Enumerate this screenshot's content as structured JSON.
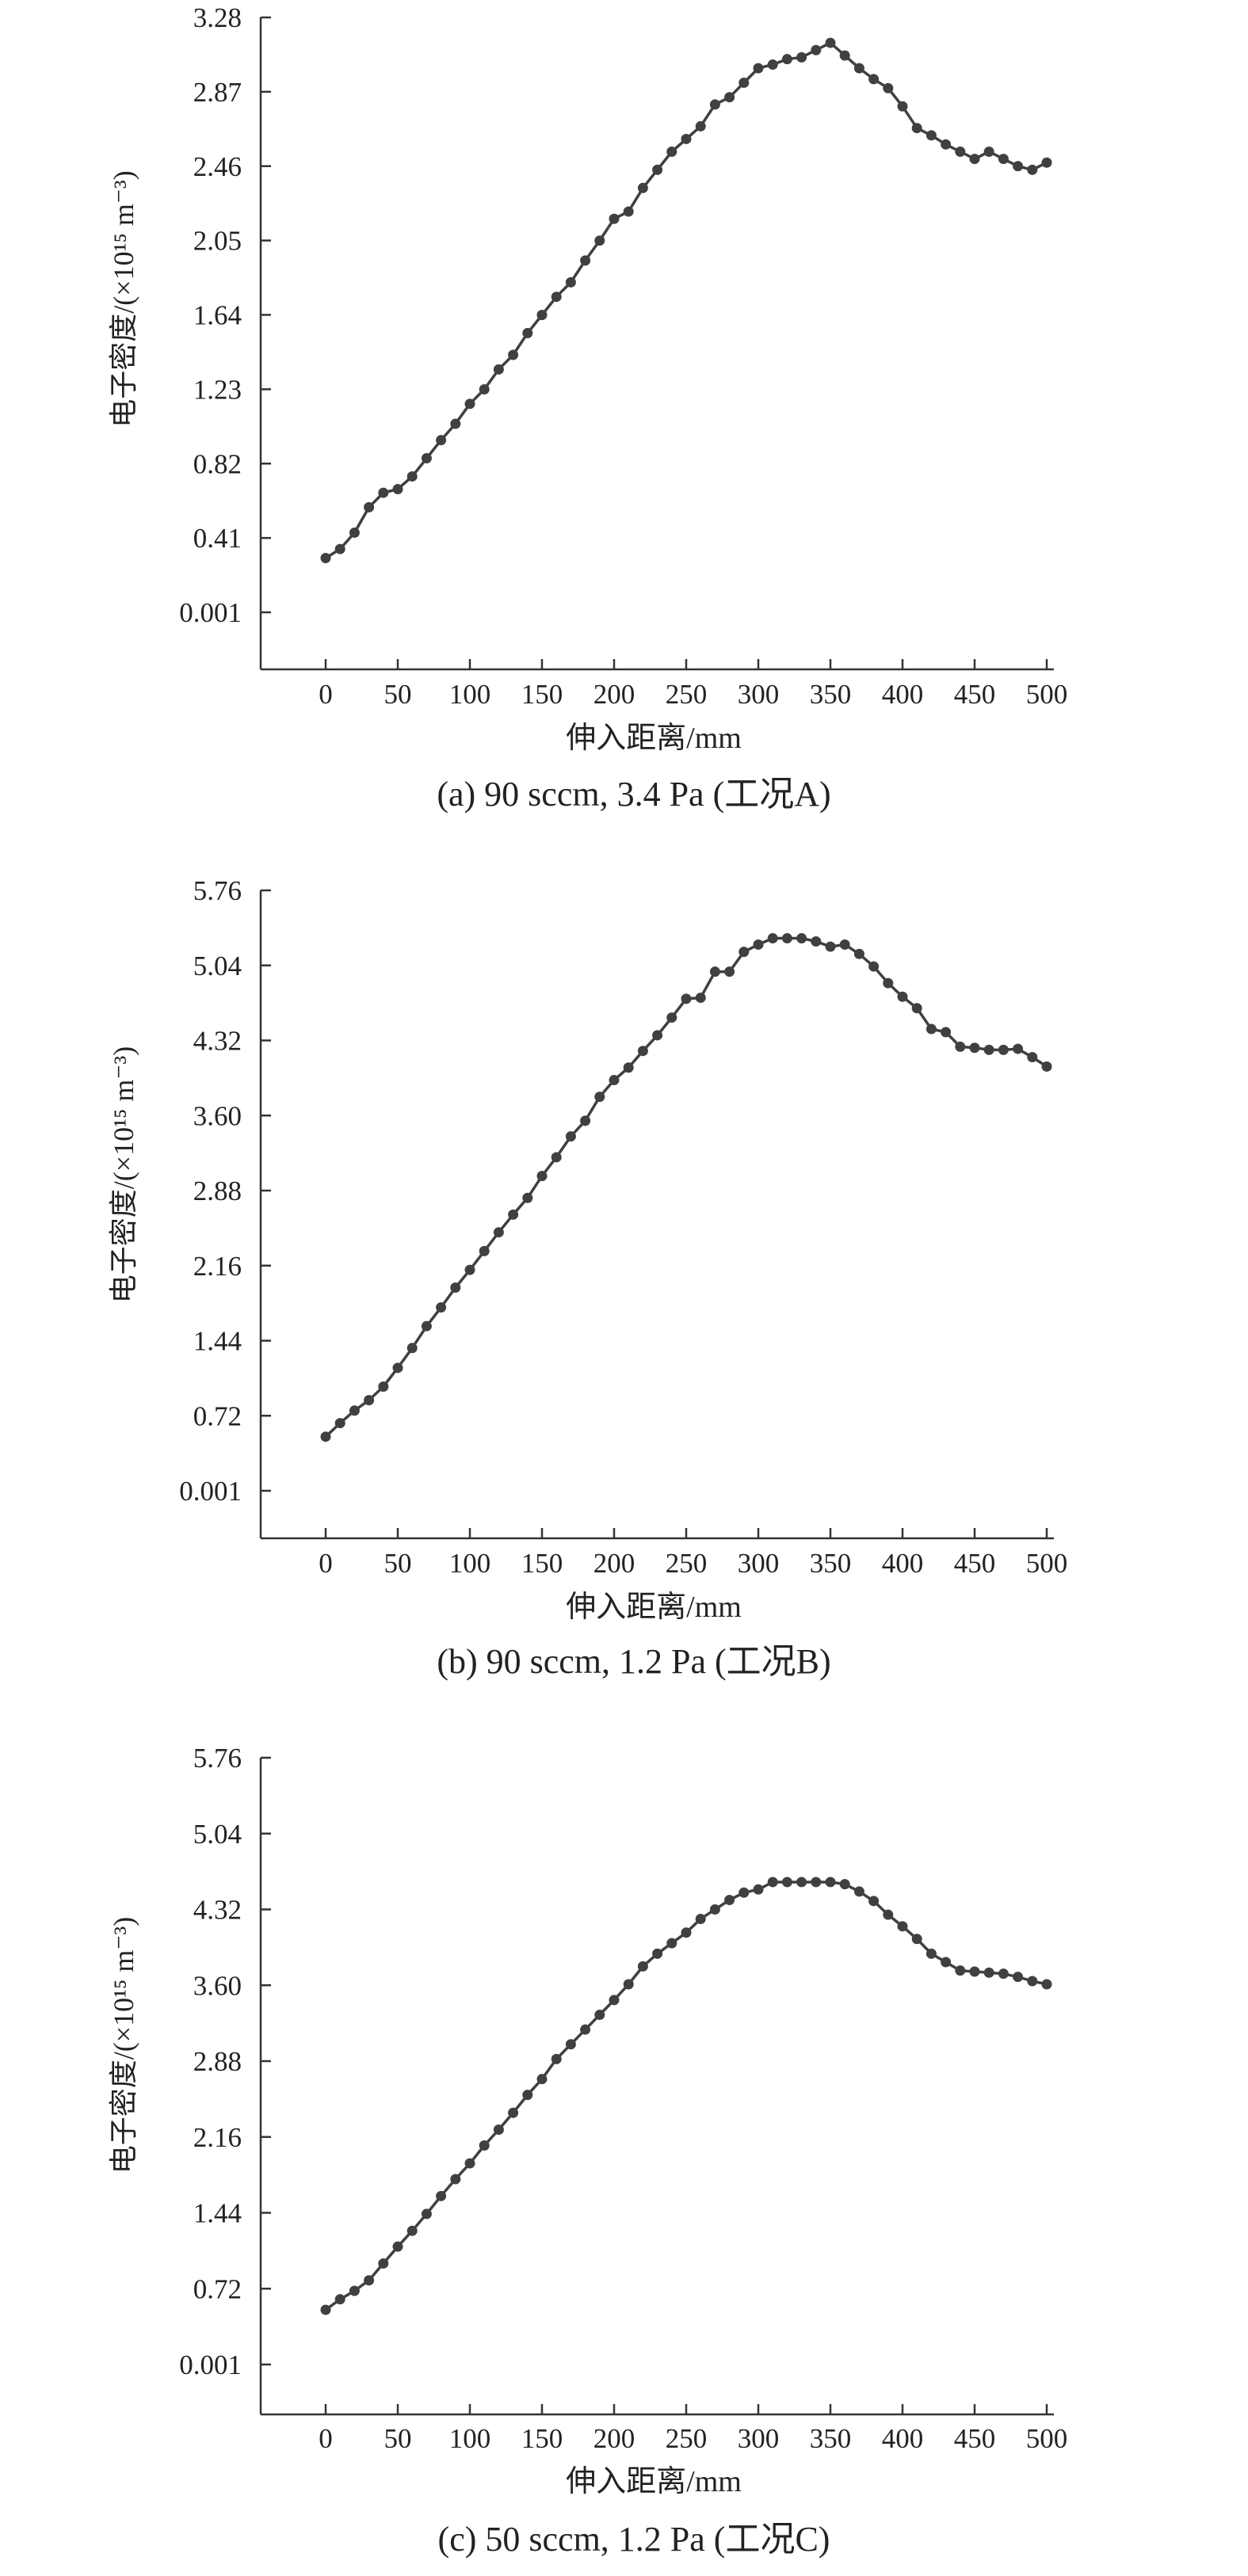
{
  "charts": [
    {
      "caption": "(a)  90 sccm, 3.4 Pa (工况A)",
      "xlabel": "伸入距离/mm",
      "ylabel": "电子密度/(×10¹⁵ m⁻³)",
      "xticks": [
        "0",
        "50",
        "100",
        "150",
        "200",
        "250",
        "300",
        "350",
        "400",
        "450",
        "500"
      ],
      "yticks": [
        "0.001",
        "0.41",
        "0.82",
        "1.23",
        "1.64",
        "2.05",
        "2.46",
        "2.87",
        "3.28"
      ]
    },
    {
      "caption": "(b)  90 sccm, 1.2 Pa (工况B)",
      "xlabel": "伸入距离/mm",
      "ylabel": "电子密度/(×10¹⁵ m⁻³)",
      "xticks": [
        "0",
        "50",
        "100",
        "150",
        "200",
        "250",
        "300",
        "350",
        "400",
        "450",
        "500"
      ],
      "yticks": [
        "0.001",
        "0.72",
        "1.44",
        "2.16",
        "2.88",
        "3.60",
        "4.32",
        "5.04",
        "5.76"
      ]
    },
    {
      "caption": "(c)  50 sccm, 1.2 Pa (工况C)",
      "xlabel": "伸入距离/mm",
      "ylabel": "电子密度/(×10¹⁵ m⁻³)",
      "xticks": [
        "0",
        "50",
        "100",
        "150",
        "200",
        "250",
        "300",
        "350",
        "400",
        "450",
        "500"
      ],
      "yticks": [
        "0.001",
        "0.72",
        "1.44",
        "2.16",
        "2.88",
        "3.60",
        "4.32",
        "5.04",
        "5.76"
      ]
    }
  ],
  "chart_data": [
    {
      "type": "line",
      "title": "",
      "xlabel": "伸入距离/mm",
      "ylabel": "电子密度/(×10¹⁵ m⁻³)",
      "xlim": [
        0,
        500
      ],
      "ylim": [
        0.001,
        3.28
      ],
      "x": [
        0,
        10,
        20,
        30,
        40,
        50,
        60,
        70,
        80,
        90,
        100,
        110,
        120,
        130,
        140,
        150,
        160,
        170,
        180,
        190,
        200,
        210,
        220,
        230,
        240,
        250,
        260,
        270,
        280,
        290,
        300,
        310,
        320,
        330,
        340,
        350,
        360,
        370,
        380,
        390,
        400,
        410,
        420,
        430,
        440,
        450,
        460,
        470,
        480,
        490,
        500
      ],
      "series": [
        {
          "values": [
            0.3,
            0.35,
            0.44,
            0.58,
            0.66,
            0.68,
            0.75,
            0.85,
            0.95,
            1.04,
            1.15,
            1.23,
            1.34,
            1.42,
            1.54,
            1.64,
            1.74,
            1.82,
            1.94,
            2.05,
            2.17,
            2.21,
            2.34,
            2.44,
            2.54,
            2.61,
            2.68,
            2.8,
            2.84,
            2.92,
            3.0,
            3.02,
            3.05,
            3.06,
            3.1,
            3.14,
            3.07,
            3.0,
            2.94,
            2.89,
            2.79,
            2.67,
            2.63,
            2.58,
            2.54,
            2.5,
            2.54,
            2.5,
            2.46,
            2.44,
            2.48
          ]
        }
      ],
      "line_color": "#404040"
    },
    {
      "type": "line",
      "title": "",
      "xlabel": "伸入距离/mm",
      "ylabel": "电子密度/(×10¹⁵ m⁻³)",
      "xlim": [
        0,
        500
      ],
      "ylim": [
        0.001,
        5.76
      ],
      "x": [
        0,
        10,
        20,
        30,
        40,
        50,
        60,
        70,
        80,
        90,
        100,
        110,
        120,
        130,
        140,
        150,
        160,
        170,
        180,
        190,
        200,
        210,
        220,
        230,
        240,
        250,
        260,
        270,
        280,
        290,
        300,
        310,
        320,
        330,
        340,
        350,
        360,
        370,
        380,
        390,
        400,
        410,
        420,
        430,
        440,
        450,
        460,
        470,
        480,
        490,
        500
      ],
      "series": [
        {
          "values": [
            0.52,
            0.65,
            0.77,
            0.87,
            1.0,
            1.18,
            1.37,
            1.58,
            1.76,
            1.95,
            2.12,
            2.3,
            2.48,
            2.65,
            2.81,
            3.02,
            3.2,
            3.4,
            3.55,
            3.78,
            3.94,
            4.06,
            4.22,
            4.37,
            4.54,
            4.72,
            4.73,
            4.98,
            4.98,
            5.17,
            5.24,
            5.3,
            5.3,
            5.3,
            5.27,
            5.22,
            5.24,
            5.15,
            5.03,
            4.87,
            4.74,
            4.63,
            4.43,
            4.4,
            4.26,
            4.25,
            4.23,
            4.23,
            4.24,
            4.16,
            4.07
          ]
        }
      ],
      "line_color": "#404040"
    },
    {
      "type": "line",
      "title": "",
      "xlabel": "伸入距离/mm",
      "ylabel": "电子密度/(×10¹⁵ m⁻³)",
      "xlim": [
        0,
        500
      ],
      "ylim": [
        0.001,
        5.76
      ],
      "x": [
        0,
        10,
        20,
        30,
        40,
        50,
        60,
        70,
        80,
        90,
        100,
        110,
        120,
        130,
        140,
        150,
        160,
        170,
        180,
        190,
        200,
        210,
        220,
        230,
        240,
        250,
        260,
        270,
        280,
        290,
        300,
        310,
        320,
        330,
        340,
        350,
        360,
        370,
        380,
        390,
        400,
        410,
        420,
        430,
        440,
        450,
        460,
        470,
        480,
        490,
        500
      ],
      "series": [
        {
          "values": [
            0.52,
            0.62,
            0.7,
            0.8,
            0.96,
            1.12,
            1.27,
            1.43,
            1.6,
            1.76,
            1.91,
            2.08,
            2.23,
            2.39,
            2.56,
            2.71,
            2.9,
            3.04,
            3.18,
            3.32,
            3.46,
            3.61,
            3.78,
            3.9,
            4.0,
            4.1,
            4.23,
            4.32,
            4.41,
            4.48,
            4.51,
            4.58,
            4.58,
            4.58,
            4.58,
            4.58,
            4.56,
            4.49,
            4.4,
            4.27,
            4.16,
            4.04,
            3.9,
            3.82,
            3.74,
            3.73,
            3.72,
            3.71,
            3.68,
            3.64,
            3.61
          ]
        }
      ],
      "line_color": "#404040"
    }
  ]
}
